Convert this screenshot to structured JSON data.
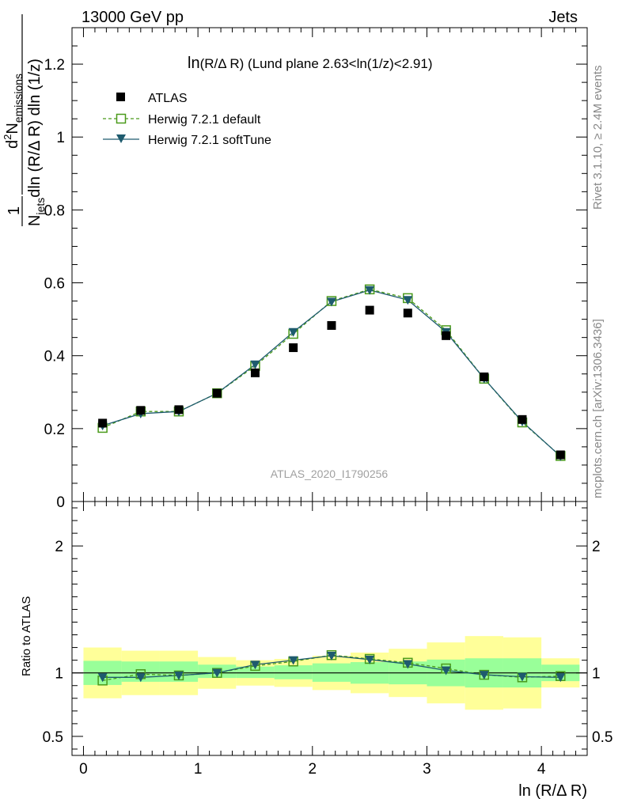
{
  "header": {
    "energy_label": "13000 GeV pp",
    "process_label": "Jets"
  },
  "side_labels": {
    "rivet": "Rivet 3.1.10, ≥ 2.4M events",
    "mcplots": "mcplots.cern.ch [arXiv:1306.3436]"
  },
  "watermark": "ATLAS_2020_I1790256",
  "main_title_prefix": "ln",
  "main_title_rest": "(R/Δ R) (Lund plane 2.63<ln(1/z)<2.91)",
  "y_axis_label": {
    "numerator_one": "1",
    "denominator_n": "N",
    "denominator_sub": "jets",
    "denominator_rest": "dln (R/Δ R) dln (1/z)",
    "num_d": "d",
    "num_sup": "2",
    "num_n": "N",
    "num_sub": "emissions"
  },
  "ratio_y_label": "Ratio to ATLAS",
  "x_axis_label": "ln (R/Δ R)",
  "legend": [
    {
      "name": "ATLAS",
      "marker": "filled-square",
      "color": "#000000"
    },
    {
      "name": "Herwig 7.2.1 default",
      "marker": "open-square",
      "color": "#4a9a1a"
    },
    {
      "name": "Herwig 7.2.1 softTune",
      "marker": "filled-triangle-down",
      "color": "#1e5b6e"
    }
  ],
  "colors": {
    "band_outer": "#ffff99",
    "band_inner": "#99ff99",
    "atlas": "#000000",
    "default": "#4a9a1a",
    "softtune": "#1e5b6e"
  },
  "chart_data": {
    "type": "scatter",
    "title": "ln(R/Δ R) (Lund plane 2.63<ln(1/z)<2.91)",
    "xlabel": "ln (R/Δ R)",
    "ylabel": "1/N_jets d²N_emissions / dln(R/ΔR) dln(1/z)",
    "xlim": [
      -0.1,
      4.4
    ],
    "ylim": [
      0,
      1.3
    ],
    "x_ticks": [
      0,
      1,
      2,
      3,
      4
    ],
    "x_tick_labels": [
      "0",
      "1",
      "2",
      "3",
      "4"
    ],
    "y_ticks": [
      0,
      0.2,
      0.4,
      0.6,
      0.8,
      1,
      1.2
    ],
    "y_tick_labels": [
      "0",
      "0.2",
      "0.4",
      "0.6",
      "0.8",
      "1",
      "1.2"
    ],
    "bin_edges": [
      0,
      0.333,
      0.667,
      1.0,
      1.333,
      1.667,
      2.0,
      2.333,
      2.667,
      3.0,
      3.333,
      3.667,
      4.0,
      4.333
    ],
    "x": [
      0.167,
      0.5,
      0.833,
      1.167,
      1.5,
      1.833,
      2.167,
      2.5,
      2.833,
      3.167,
      3.5,
      3.833,
      4.167
    ],
    "series": [
      {
        "name": "ATLAS",
        "values": [
          0.215,
          0.25,
          0.252,
          0.297,
          0.353,
          0.422,
          0.483,
          0.525,
          0.517,
          0.455,
          0.342,
          0.225,
          0.128
        ]
      },
      {
        "name": "Herwig 7.2.1 default",
        "values": [
          0.202,
          0.247,
          0.247,
          0.297,
          0.372,
          0.46,
          0.55,
          0.582,
          0.558,
          0.47,
          0.337,
          0.217,
          0.125
        ]
      },
      {
        "name": "Herwig 7.2.1 softTune",
        "values": [
          0.208,
          0.241,
          0.247,
          0.297,
          0.376,
          0.465,
          0.548,
          0.58,
          0.553,
          0.465,
          0.337,
          0.219,
          0.124
        ]
      }
    ],
    "ratio": {
      "ylabel": "Ratio to ATLAS",
      "ylim": [
        0.35,
        2.35
      ],
      "y_ticks": [
        0.5,
        1,
        2
      ],
      "y_tick_labels": [
        "0.5",
        "1",
        "2"
      ],
      "reference": 1,
      "band_inner": [
        [
          0.905,
          1.095
        ],
        [
          0.93,
          1.09
        ],
        [
          0.93,
          1.09
        ],
        [
          0.96,
          1.065
        ],
        [
          0.96,
          1.05
        ],
        [
          0.95,
          1.06
        ],
        [
          0.93,
          1.075
        ],
        [
          0.915,
          1.085
        ],
        [
          0.91,
          1.09
        ],
        [
          0.895,
          1.105
        ],
        [
          0.885,
          1.115
        ],
        [
          0.885,
          1.115
        ],
        [
          0.935,
          1.065
        ]
      ],
      "band_outer": [
        [
          0.8,
          1.2
        ],
        [
          0.825,
          1.175
        ],
        [
          0.825,
          1.175
        ],
        [
          0.875,
          1.125
        ],
        [
          0.9,
          1.1
        ],
        [
          0.89,
          1.11
        ],
        [
          0.865,
          1.135
        ],
        [
          0.84,
          1.16
        ],
        [
          0.81,
          1.19
        ],
        [
          0.76,
          1.24
        ],
        [
          0.71,
          1.29
        ],
        [
          0.72,
          1.28
        ],
        [
          0.885,
          1.115
        ]
      ],
      "series": [
        {
          "name": "Herwig 7.2.1 default",
          "values": [
            0.94,
            0.99,
            0.98,
            1.0,
            1.055,
            1.09,
            1.14,
            1.11,
            1.08,
            1.035,
            0.985,
            0.965,
            0.975
          ]
        },
        {
          "name": "Herwig 7.2.1 softTune",
          "values": [
            0.965,
            0.965,
            0.98,
            1.0,
            1.065,
            1.1,
            1.135,
            1.105,
            1.07,
            1.02,
            0.985,
            0.97,
            0.965
          ]
        }
      ]
    }
  }
}
